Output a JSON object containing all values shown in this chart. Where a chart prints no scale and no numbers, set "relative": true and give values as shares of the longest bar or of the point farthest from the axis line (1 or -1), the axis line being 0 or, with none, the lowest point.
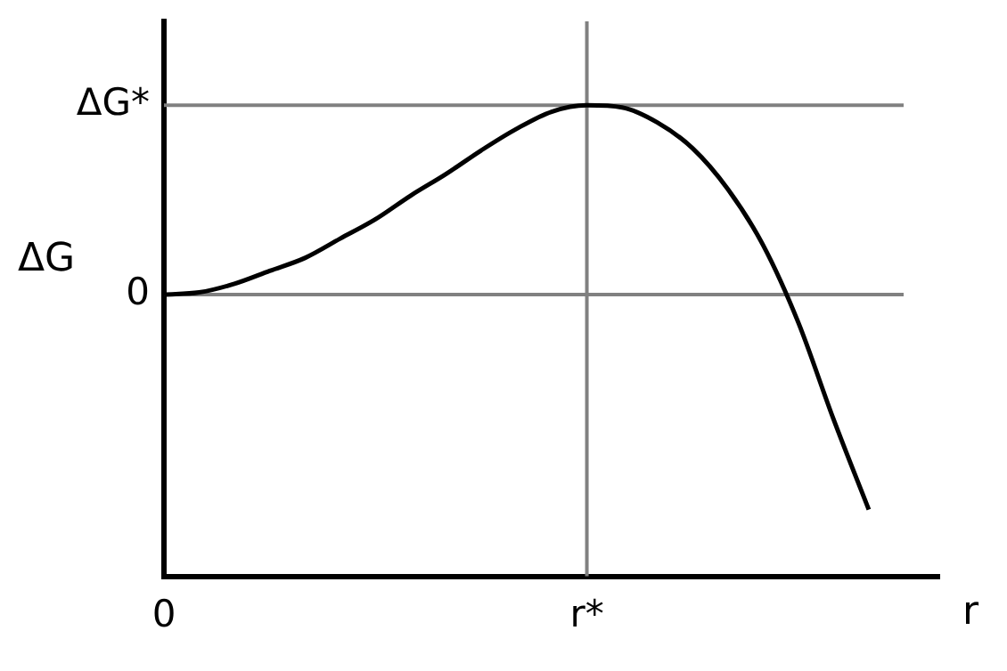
{
  "chart_data": {
    "type": "line",
    "relative": true,
    "xlabel": "r",
    "ylabel": "ΔG",
    "categories": [
      "0",
      null,
      null,
      null,
      null,
      null,
      null,
      null,
      null,
      null,
      null,
      null,
      "r*",
      null,
      null,
      null,
      null,
      null,
      null,
      null,
      null,
      null,
      null
    ],
    "series": [
      {
        "color": "#000000",
        "values": [
          0,
          0.01,
          0.05,
          0.11,
          0.17,
          0.26,
          0.35,
          0.46,
          0.56,
          0.67,
          0.77,
          0.85,
          0.88,
          0.87,
          0.8,
          0.68,
          0.49,
          0.23,
          -0.13,
          -0.58,
          -1,
          null,
          null
        ]
      }
    ],
    "ref_lines": [
      {
        "axis": "y",
        "value": 0.88,
        "label": "ΔG*",
        "color": "#808080"
      },
      {
        "axis": "y",
        "value": 0,
        "label": "0",
        "color": "#808080"
      },
      {
        "axis": "x",
        "value": "r*",
        "color": "#808080"
      }
    ],
    "grid": false,
    "legend": false,
    "marker": "none",
    "line_style": "solid"
  }
}
